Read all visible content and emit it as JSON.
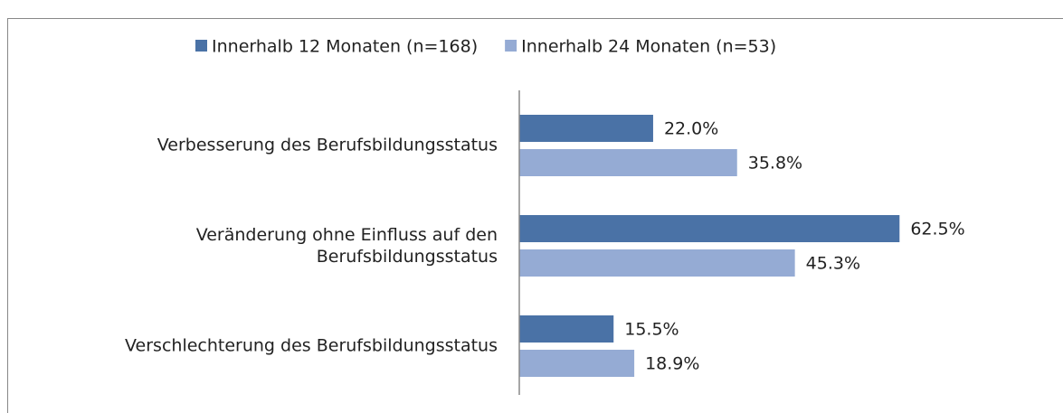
{
  "chart_data": {
    "type": "barh",
    "categories": [
      "Verbesserung des Berufsbildungsstatus",
      "Veränderung ohne Einfluss auf den Berufsbildungsstatus",
      "Verschlechterung des Berufsbildungsstatus"
    ],
    "series": [
      {
        "name": "Innerhalb 12 Monaten (n=168)",
        "color": "#4a72a6",
        "values": [
          22.0,
          62.5,
          15.5
        ],
        "value_labels": [
          "22.0%",
          "62.5%",
          "15.5%"
        ]
      },
      {
        "name": "Innerhalb 24 Monaten (n=53)",
        "color": "#95abd4",
        "values": [
          35.8,
          45.3,
          18.9
        ],
        "value_labels": [
          "35.8%",
          "45.3%",
          "18.9%"
        ]
      }
    ],
    "xlim": [
      0,
      80
    ],
    "legend": "top"
  }
}
